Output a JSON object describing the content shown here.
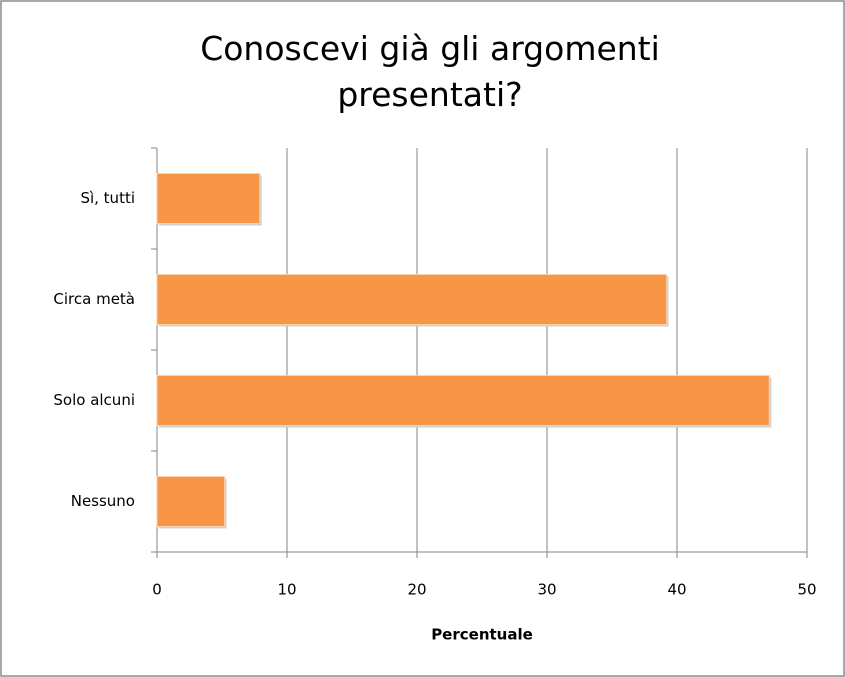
{
  "chart_data": {
    "type": "bar",
    "orientation": "horizontal",
    "title": "Conoscevi già gli argomenti presentati?",
    "categories": [
      "Sì, tutti",
      "Circa metà",
      "Solo alcuni",
      "Nessuno"
    ],
    "values": [
      7.9,
      39.2,
      47.1,
      5.2
    ],
    "color": "#f79646",
    "xlabel": "Percentuale",
    "xlim": [
      0,
      50
    ],
    "xticks": [
      0,
      10,
      20,
      30,
      40,
      50
    ],
    "grid": true
  }
}
